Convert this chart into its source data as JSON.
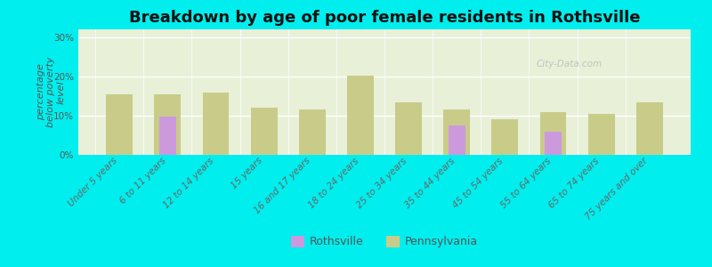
{
  "title": "Breakdown by age of poor female residents in Rothsville",
  "ylabel": "percentage\nbelow poverty\nlevel",
  "categories": [
    "Under 5 years",
    "6 to 11 years",
    "12 to 14 years",
    "15 years",
    "16 and 17 years",
    "18 to 24 years",
    "25 to 34 years",
    "35 to 44 years",
    "45 to 54 years",
    "55 to 64 years",
    "65 to 74 years",
    "75 years and over"
  ],
  "rothsville": [
    0,
    9.8,
    0,
    0,
    0,
    0,
    0,
    7.5,
    0,
    6.0,
    0,
    0
  ],
  "pennsylvania": [
    15.5,
    15.5,
    16.0,
    12.0,
    11.5,
    20.2,
    13.5,
    11.5,
    9.0,
    11.0,
    10.5,
    13.5
  ],
  "rothsville_color": "#cc99dd",
  "pennsylvania_color": "#c8cc88",
  "background_color": "#00eeee",
  "ylim": [
    0,
    32
  ],
  "yticks": [
    0,
    10,
    20,
    30
  ],
  "ytick_labels": [
    "0%",
    "10%",
    "20%",
    "30%"
  ],
  "bar_width": 0.55,
  "roth_bar_width": 0.35,
  "title_fontsize": 13,
  "axis_label_fontsize": 8,
  "tick_fontsize": 7.5,
  "legend_fontsize": 9,
  "watermark": "City-Data.com"
}
